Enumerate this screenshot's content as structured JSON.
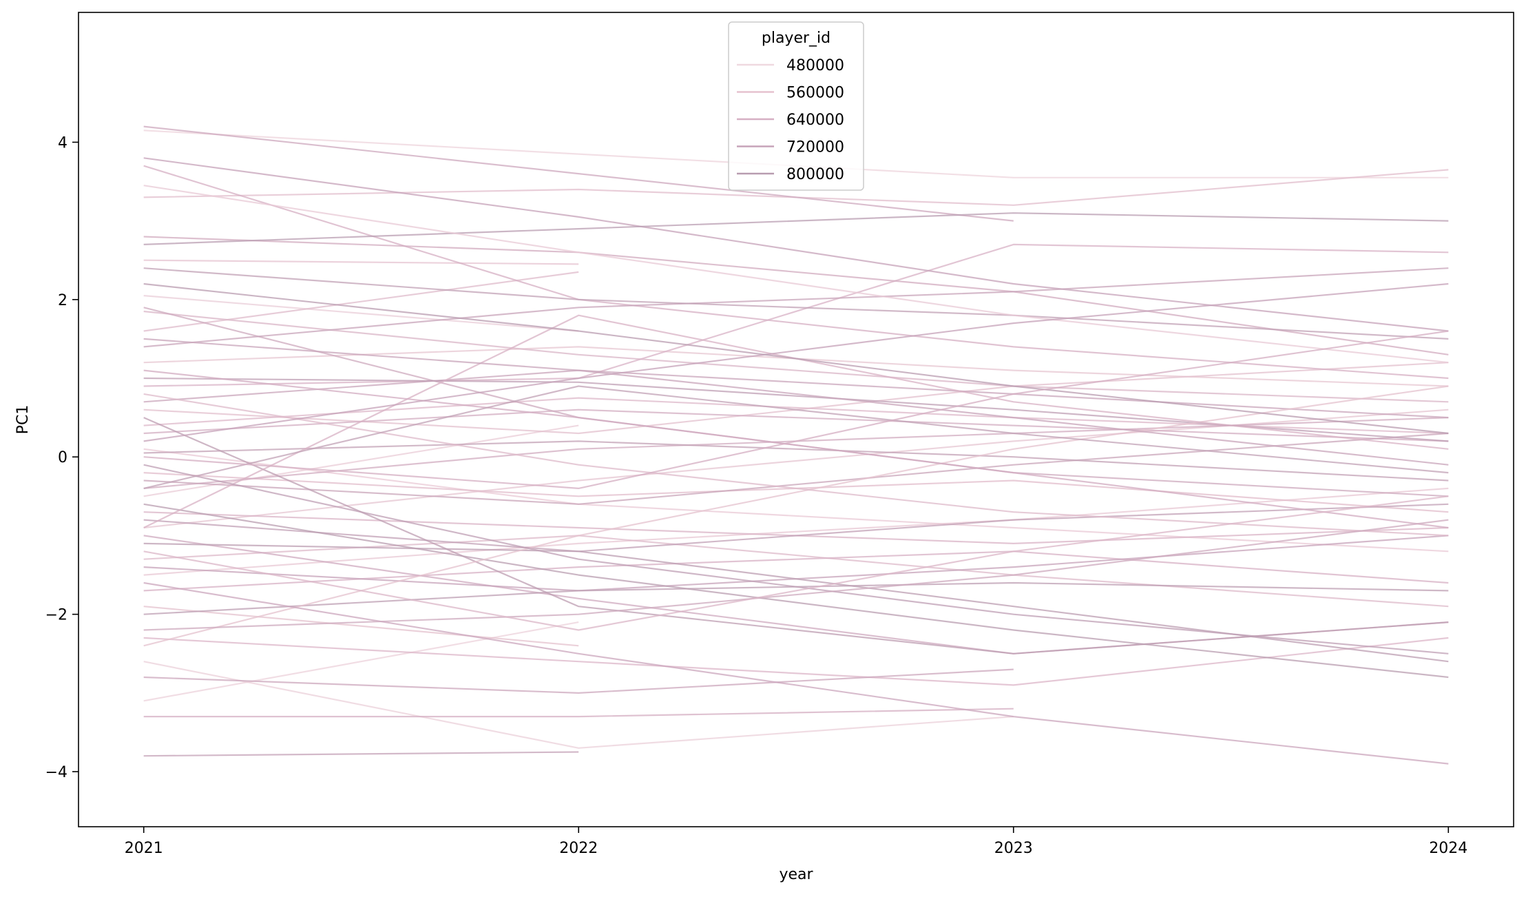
{
  "chart_data": {
    "type": "line",
    "xlabel": "year",
    "ylabel": "PC1",
    "x": [
      2021,
      2022,
      2023,
      2024
    ],
    "x_ticks": [
      "2021",
      "2022",
      "2023",
      "2024"
    ],
    "y_ticks": [
      "−4",
      "−2",
      "0",
      "2",
      "4"
    ],
    "y_tick_values": [
      -4,
      -2,
      0,
      2,
      4
    ],
    "xlim": [
      2020.85,
      2024.15
    ],
    "ylim": [
      -4.7,
      5.65
    ],
    "grid": false,
    "legend": {
      "title": "player_id",
      "placement": "top-center",
      "entries": [
        "480000",
        "560000",
        "640000",
        "720000",
        "800000"
      ],
      "colors": [
        "#efd9e0",
        "#e5c2cf",
        "#d6afc3",
        "#c7a3b9",
        "#b89caf"
      ]
    },
    "hue_range": [
      440000,
      830000
    ],
    "series": [
      {
        "id": 462000,
        "values": [
          4.15,
          3.85,
          3.55,
          3.55
        ]
      },
      {
        "id": 470000,
        "values": [
          -3.1,
          -2.1,
          null,
          null
        ]
      },
      {
        "id": 478000,
        "values": [
          -2.6,
          -3.7,
          -3.3,
          null
        ]
      },
      {
        "id": 486000,
        "values": [
          2.05,
          1.6,
          null,
          null
        ]
      },
      {
        "id": 494000,
        "values": [
          -0.5,
          0.4,
          null,
          null
        ]
      },
      {
        "id": 502000,
        "values": [
          0.1,
          -0.6,
          -0.9,
          -1.2
        ]
      },
      {
        "id": 510000,
        "values": [
          -1.5,
          -1.1,
          -0.8,
          -0.4
        ]
      },
      {
        "id": 518000,
        "values": [
          1.2,
          1.4,
          1.1,
          0.9
        ]
      },
      {
        "id": 526000,
        "values": [
          -0.9,
          -0.3,
          0.2,
          0.6
        ]
      },
      {
        "id": 534000,
        "values": [
          2.5,
          2.45,
          null,
          null
        ]
      },
      {
        "id": 542000,
        "values": [
          -1.9,
          -2.4,
          null,
          null
        ]
      },
      {
        "id": 550000,
        "values": [
          0.6,
          0.3,
          0.9,
          1.2
        ]
      },
      {
        "id": 558000,
        "values": [
          3.3,
          3.4,
          3.2,
          3.65
        ]
      },
      {
        "id": 566000,
        "values": [
          -0.2,
          -0.5,
          -0.3,
          -0.7
        ]
      },
      {
        "id": 574000,
        "values": [
          1.6,
          2.35,
          null,
          null
        ]
      },
      {
        "id": 582000,
        "values": [
          -1.3,
          -1.0,
          -1.5,
          -1.9
        ]
      },
      {
        "id": 590000,
        "values": [
          0.4,
          0.75,
          0.5,
          0.3
        ]
      },
      {
        "id": 598000,
        "values": [
          -2.3,
          -2.6,
          -2.9,
          -2.3
        ]
      },
      {
        "id": 606000,
        "values": [
          1.85,
          1.3,
          0.9,
          0.7
        ]
      },
      {
        "id": 614000,
        "values": [
          -0.7,
          -0.9,
          -1.1,
          -0.9
        ]
      },
      {
        "id": 622000,
        "values": [
          0.9,
          1.0,
          2.7,
          2.6
        ]
      },
      {
        "id": 630000,
        "values": [
          -1.7,
          -1.4,
          -1.2,
          -1.6
        ]
      },
      {
        "id": 638000,
        "values": [
          3.7,
          2.0,
          1.4,
          1.0
        ]
      },
      {
        "id": 646000,
        "values": [
          -3.3,
          -3.3,
          -3.2,
          null
        ]
      },
      {
        "id": 654000,
        "values": [
          0.3,
          0.6,
          0.4,
          0.2
        ]
      },
      {
        "id": 662000,
        "values": [
          -0.4,
          0.1,
          0.3,
          0.5
        ]
      },
      {
        "id": 670000,
        "values": [
          2.8,
          2.6,
          2.1,
          1.3
        ]
      },
      {
        "id": 678000,
        "values": [
          -1.0,
          -1.8,
          -2.5,
          -2.1
        ]
      },
      {
        "id": 686000,
        "values": [
          1.9,
          0.5,
          -0.2,
          -0.5
        ]
      },
      {
        "id": 694000,
        "values": [
          4.2,
          3.6,
          3.0,
          null
        ]
      },
      {
        "id": 702000,
        "values": [
          -2.8,
          -3.0,
          -2.7,
          null
        ]
      },
      {
        "id": 710000,
        "values": [
          0.7,
          1.1,
          0.8,
          0.5
        ]
      },
      {
        "id": 718000,
        "values": [
          -0.3,
          -0.6,
          -0.1,
          0.3
        ]
      },
      {
        "id": 726000,
        "values": [
          1.4,
          1.9,
          2.1,
          2.4
        ]
      },
      {
        "id": 734000,
        "values": [
          -1.4,
          -1.7,
          -1.4,
          -1.0
        ]
      },
      {
        "id": 742000,
        "values": [
          3.8,
          3.05,
          2.2,
          1.6
        ]
      },
      {
        "id": 750000,
        "values": [
          -3.8,
          -3.75,
          null,
          null
        ]
      },
      {
        "id": 758000,
        "values": [
          0.05,
          0.2,
          0.0,
          -0.3
        ]
      },
      {
        "id": 766000,
        "values": [
          2.4,
          2.0,
          1.8,
          1.5
        ]
      },
      {
        "id": 774000,
        "values": [
          -0.8,
          -1.2,
          -0.8,
          -0.6
        ]
      },
      {
        "id": 782000,
        "values": [
          1.0,
          0.95,
          0.6,
          0.2
        ]
      },
      {
        "id": 790000,
        "values": [
          -2.0,
          -1.7,
          -1.6,
          -1.7
        ]
      },
      {
        "id": 798000,
        "values": [
          0.5,
          -1.9,
          -2.5,
          -2.1
        ]
      },
      {
        "id": 806000,
        "values": [
          -1.1,
          -1.2,
          -1.9,
          -2.6
        ]
      },
      {
        "id": 814000,
        "values": [
          2.7,
          2.9,
          3.1,
          3.0
        ]
      },
      {
        "id": 822000,
        "values": [
          -0.6,
          -1.5,
          -2.2,
          -2.8
        ]
      },
      {
        "id": 505000,
        "values": [
          3.45,
          2.6,
          1.8,
          1.2
        ]
      },
      {
        "id": 545000,
        "values": [
          -2.4,
          -1.0,
          0.1,
          0.9
        ]
      },
      {
        "id": 585000,
        "values": [
          0.8,
          -0.1,
          -0.7,
          -1.0
        ]
      },
      {
        "id": 625000,
        "values": [
          -0.9,
          1.8,
          0.7,
          0.1
        ]
      },
      {
        "id": 665000,
        "values": [
          1.1,
          0.5,
          -0.2,
          -0.9
        ]
      },
      {
        "id": 705000,
        "values": [
          -1.6,
          -2.5,
          -3.3,
          -3.9
        ]
      },
      {
        "id": 745000,
        "values": [
          0.2,
          1.0,
          1.7,
          2.2
        ]
      },
      {
        "id": 785000,
        "values": [
          -0.1,
          -1.3,
          -2.0,
          -2.5
        ]
      },
      {
        "id": 825000,
        "values": [
          2.2,
          1.6,
          0.9,
          0.3
        ]
      },
      {
        "id": 765000,
        "values": [
          -0.4,
          0.9,
          0.3,
          -0.2
        ]
      },
      {
        "id": 725000,
        "values": [
          1.5,
          1.1,
          0.5,
          -0.1
        ]
      },
      {
        "id": 685000,
        "values": [
          -2.2,
          -2.0,
          -1.5,
          -0.8
        ]
      },
      {
        "id": 645000,
        "values": [
          0.0,
          -0.4,
          0.8,
          1.6
        ]
      },
      {
        "id": 605000,
        "values": [
          -1.2,
          -2.2,
          -1.2,
          -0.5
        ]
      }
    ]
  }
}
